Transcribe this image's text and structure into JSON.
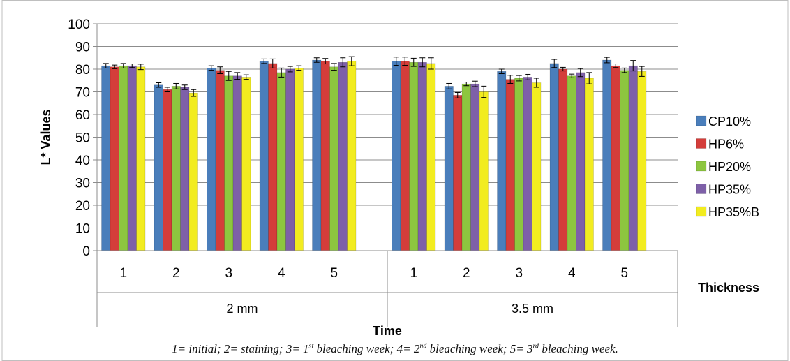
{
  "top_fragment": "",
  "caption": {
    "parts": [
      {
        "t": "1= initial; 2= staining; 3= 1"
      },
      {
        "sup": "st"
      },
      {
        "t": " bleaching week; 4= 2"
      },
      {
        "sup": "nd"
      },
      {
        "t": " bleaching week; 5= 3"
      },
      {
        "sup": "rd"
      },
      {
        "t": " bleaching week."
      }
    ]
  },
  "chart_data": {
    "type": "bar",
    "ylabel": "L* Values",
    "xlabel": "Time",
    "axis_side_label": "Thickness",
    "ylim": [
      0,
      100
    ],
    "yticks": [
      0,
      10,
      20,
      30,
      40,
      50,
      60,
      70,
      80,
      90,
      100
    ],
    "grid": true,
    "legend_position": "right",
    "groups": [
      {
        "label": "2 mm",
        "categories": [
          "1",
          "2",
          "3",
          "4",
          "5"
        ]
      },
      {
        "label": "3.5 mm",
        "categories": [
          "1",
          "2",
          "3",
          "4",
          "5"
        ]
      }
    ],
    "series": [
      {
        "name": "CP10%",
        "color": "#4a7ebb",
        "values": [
          81.5,
          73,
          80.5,
          83.5,
          84,
          83.5,
          72.5,
          79,
          82.5,
          84
        ],
        "errors": [
          1,
          1,
          1,
          1,
          1,
          1.8,
          1.2,
          1,
          1.8,
          1.2
        ]
      },
      {
        "name": "HP6%",
        "color": "#d43d3a",
        "values": [
          81,
          71,
          79.5,
          82.5,
          83.5,
          83.5,
          68.5,
          75.5,
          80,
          81.5
        ],
        "errors": [
          0.8,
          1,
          1.5,
          2,
          1.2,
          1.8,
          1.2,
          1.8,
          0.8,
          0.8
        ]
      },
      {
        "name": "HP20%",
        "color": "#8dc63f",
        "values": [
          81.5,
          72.5,
          77,
          78.5,
          81,
          83,
          73.5,
          76,
          77,
          79.5
        ],
        "errors": [
          1,
          1.2,
          2,
          2,
          1.5,
          1.8,
          0.8,
          1.2,
          0.8,
          1
        ]
      },
      {
        "name": "HP35%",
        "color": "#7e60a8",
        "values": [
          81.5,
          72,
          77,
          80,
          83,
          83,
          73.5,
          76.5,
          78.5,
          81.5
        ],
        "errors": [
          0.8,
          1,
          1.5,
          1.2,
          2,
          2,
          1.2,
          1.2,
          1.8,
          2.3
        ]
      },
      {
        "name": "HP35%B",
        "color": "#f2ec20",
        "values": [
          81,
          69.5,
          76.5,
          80.5,
          83.5,
          82.5,
          70,
          74,
          76,
          79
        ],
        "errors": [
          1.2,
          1.5,
          1,
          1,
          2,
          2.5,
          2.5,
          2,
          2.5,
          2.2
        ]
      }
    ]
  }
}
